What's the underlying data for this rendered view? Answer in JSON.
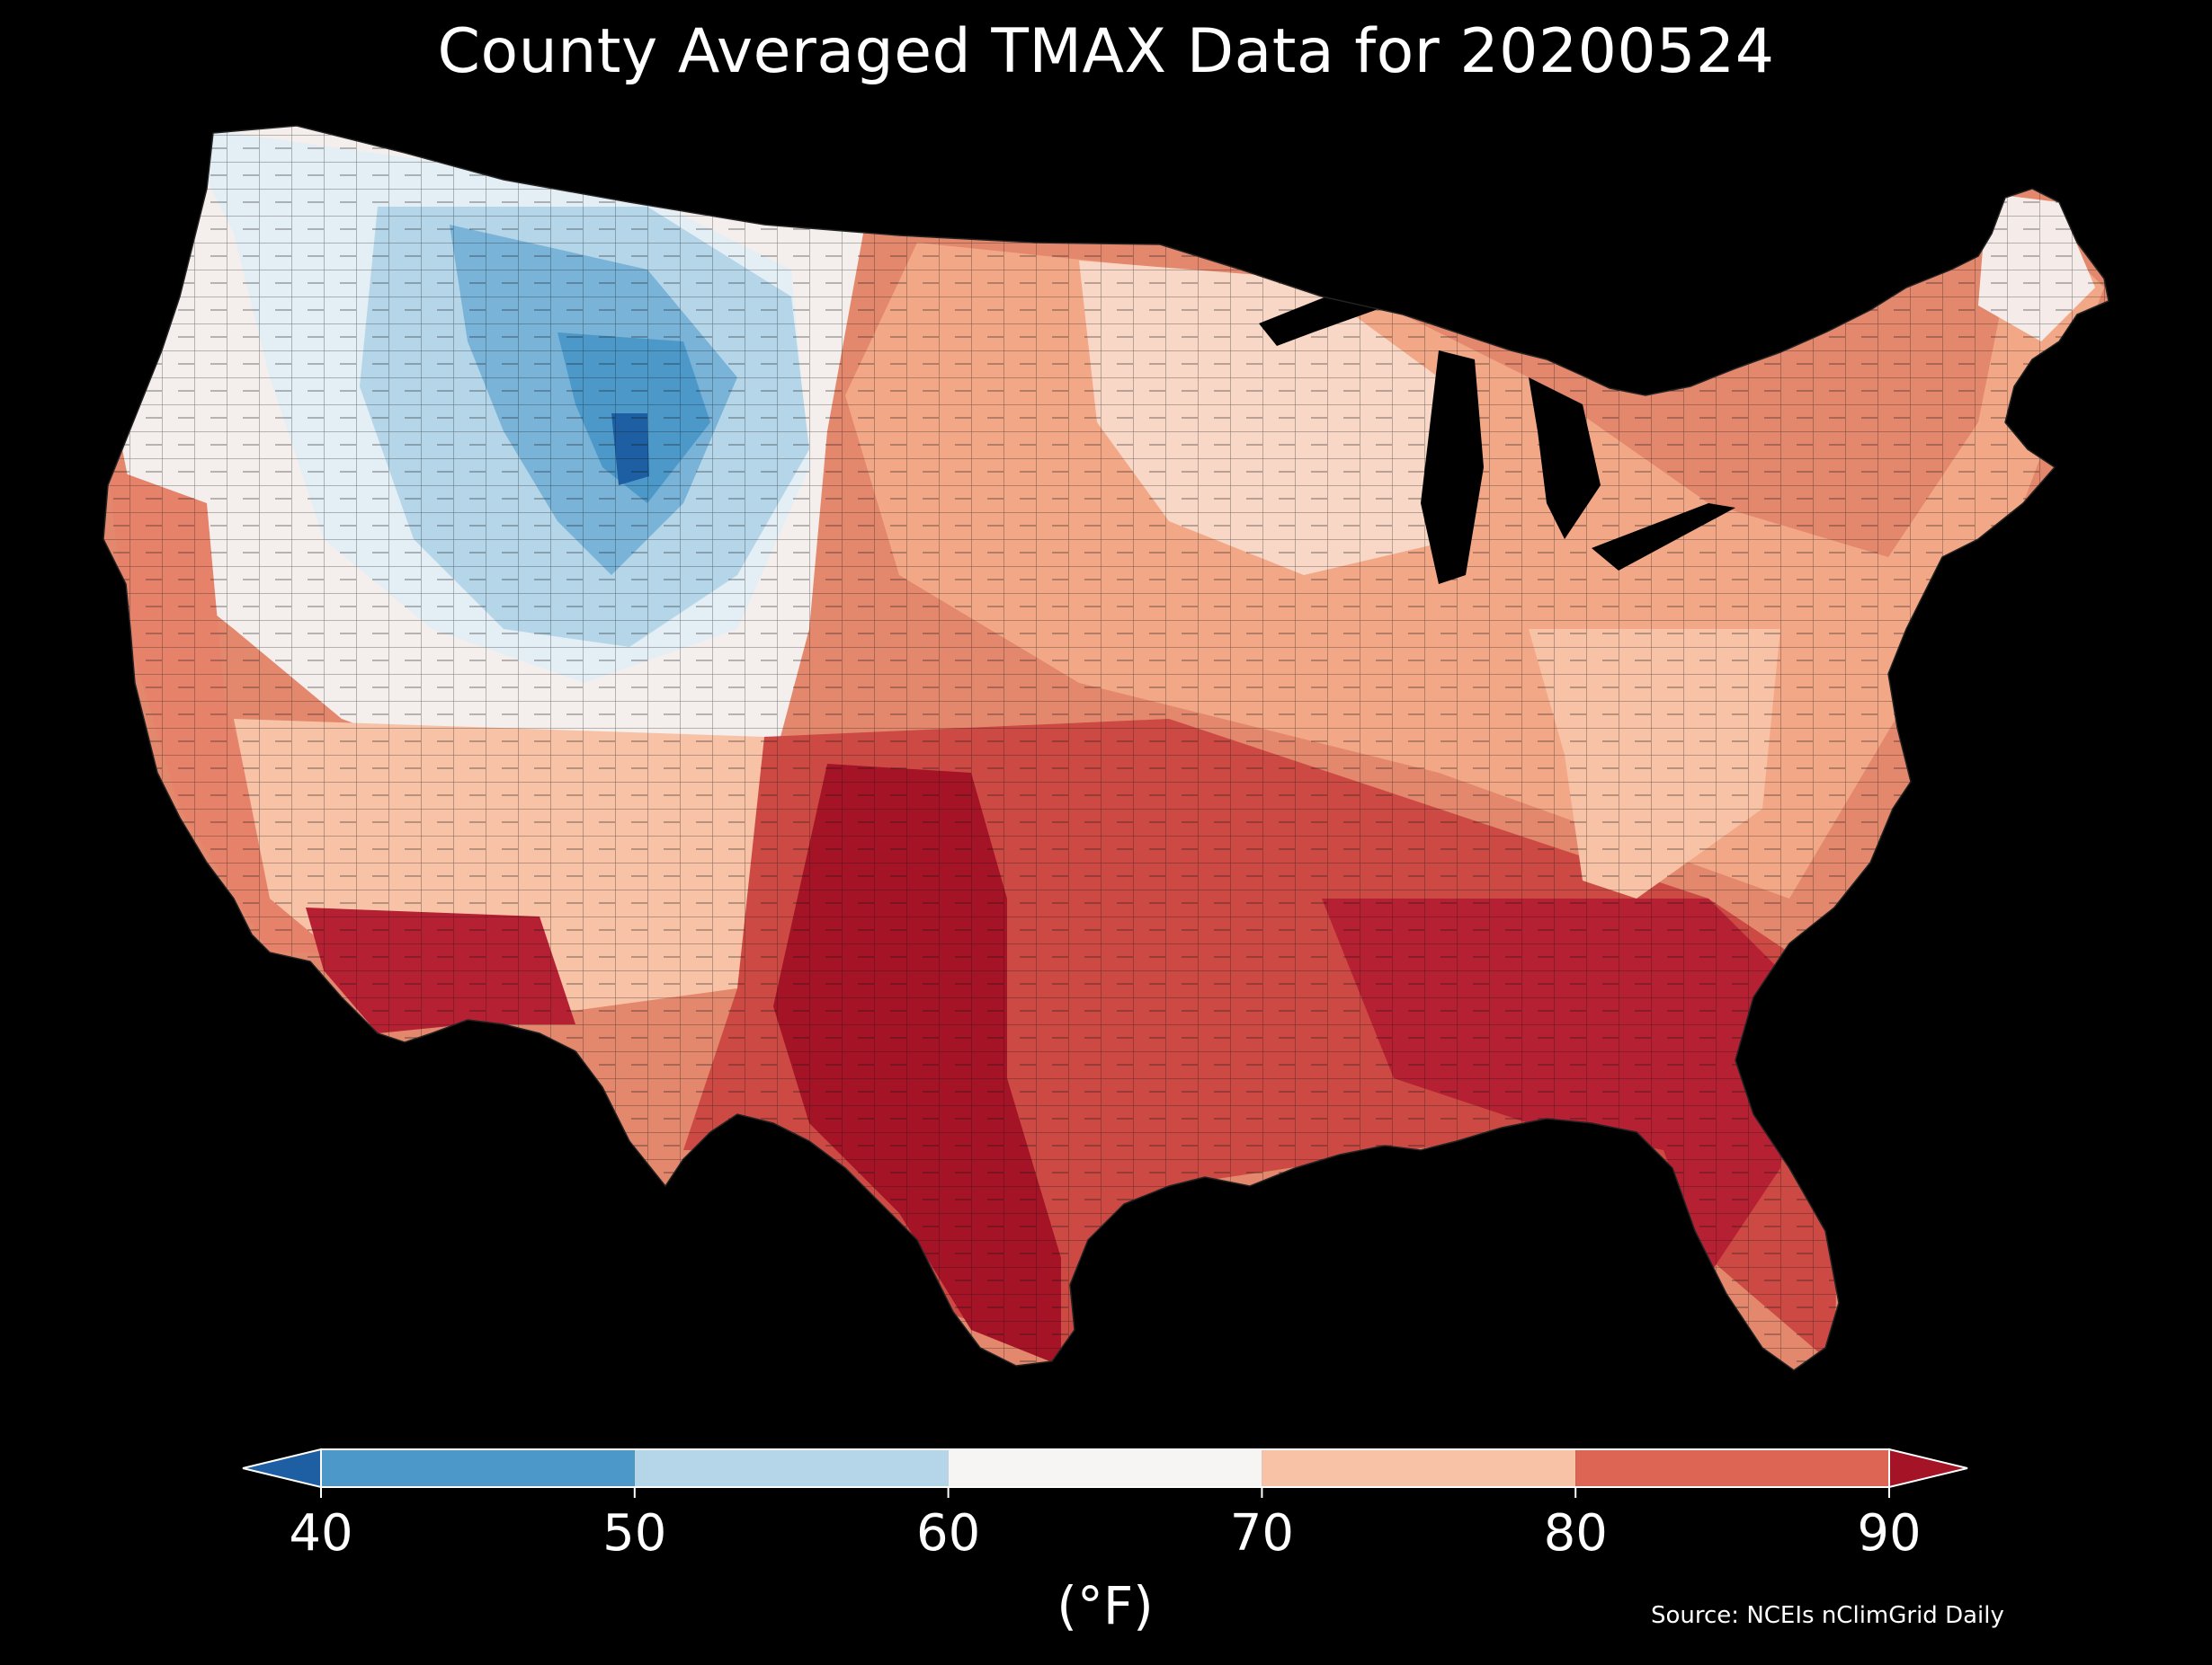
{
  "title": "County Averaged TMAX Data for 20200524",
  "source": "Source: NCEIs nClimGrid Daily",
  "colorbar": {
    "label": "(°F)",
    "ticks": [
      "40",
      "50",
      "60",
      "70",
      "80",
      "90"
    ],
    "bins": [
      {
        "from": 40,
        "to": 50,
        "color": "#4b98c9"
      },
      {
        "from": 50,
        "to": 60,
        "color": "#b5d6e8"
      },
      {
        "from": 60,
        "to": 70,
        "color": "#f6f5f3"
      },
      {
        "from": 70,
        "to": 80,
        "color": "#f8c2a6"
      },
      {
        "from": 80,
        "to": 90,
        "color": "#dc6653"
      }
    ],
    "under_color": "#1d5fa2",
    "over_color": "#a51426"
  },
  "colors": {
    "background": "#000000",
    "county_border": "#1a1a1a"
  }
}
